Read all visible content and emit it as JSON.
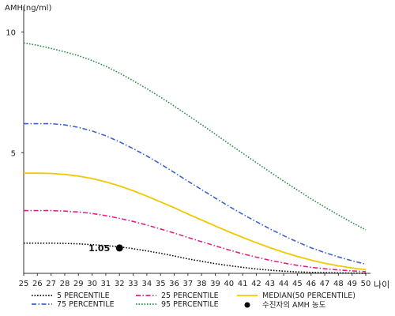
{
  "chart_data": {
    "type": "line",
    "title": "",
    "ylabel": "AMH(ng/ml)",
    "xlabel": "나이",
    "x": [
      25,
      26,
      27,
      28,
      29,
      30,
      31,
      32,
      33,
      34,
      35,
      36,
      37,
      38,
      39,
      40,
      41,
      42,
      43,
      44,
      45,
      46,
      47,
      48,
      49,
      50
    ],
    "xlim": [
      25,
      50
    ],
    "ylim": [
      0,
      11
    ],
    "yticks": [
      5,
      10
    ],
    "grid": false,
    "legend_position": "bottom",
    "series": [
      {
        "name": "5 PERCENTILE",
        "color": "#111111",
        "style": "dotted",
        "values": [
          1.25,
          1.25,
          1.25,
          1.24,
          1.22,
          1.19,
          1.15,
          1.1,
          1.02,
          0.93,
          0.83,
          0.72,
          0.6,
          0.5,
          0.4,
          0.32,
          0.25,
          0.18,
          0.13,
          0.09,
          0.06,
          0.04,
          0.03,
          0.02,
          0.01,
          0.0
        ]
      },
      {
        "name": "25 PERCENTILE",
        "color": "#e0218a",
        "style": "dashdot",
        "values": [
          2.6,
          2.6,
          2.6,
          2.58,
          2.54,
          2.48,
          2.39,
          2.28,
          2.15,
          2.0,
          1.84,
          1.67,
          1.49,
          1.31,
          1.14,
          0.97,
          0.81,
          0.67,
          0.54,
          0.43,
          0.33,
          0.25,
          0.19,
          0.14,
          0.1,
          0.07
        ]
      },
      {
        "name": "MEDIAN(50 PERCENTILE)",
        "color": "#f2c800",
        "style": "solid",
        "values": [
          4.15,
          4.15,
          4.14,
          4.1,
          4.03,
          3.93,
          3.79,
          3.62,
          3.42,
          3.2,
          2.96,
          2.72,
          2.46,
          2.21,
          1.96,
          1.72,
          1.49,
          1.27,
          1.06,
          0.87,
          0.7,
          0.55,
          0.42,
          0.31,
          0.22,
          0.15
        ]
      },
      {
        "name": "75 PERCENTILE",
        "color": "#3c63c9",
        "style": "dashdot",
        "values": [
          6.2,
          6.2,
          6.2,
          6.15,
          6.05,
          5.9,
          5.7,
          5.45,
          5.17,
          4.86,
          4.53,
          4.18,
          3.82,
          3.47,
          3.12,
          2.78,
          2.45,
          2.14,
          1.84,
          1.56,
          1.3,
          1.06,
          0.86,
          0.68,
          0.52,
          0.38
        ]
      },
      {
        "name": "95 PERCENTILE",
        "color": "#2e8b4e",
        "style": "dotted",
        "values": [
          9.55,
          9.45,
          9.32,
          9.18,
          9.02,
          8.82,
          8.58,
          8.3,
          7.98,
          7.65,
          7.3,
          6.93,
          6.55,
          6.16,
          5.77,
          5.37,
          4.98,
          4.59,
          4.2,
          3.82,
          3.45,
          3.09,
          2.75,
          2.42,
          2.1,
          1.8
        ]
      }
    ],
    "points": [
      {
        "name": "수진자의 AMH 농도",
        "x": 32,
        "y": 1.05,
        "label": "1.05",
        "color": "#000000"
      }
    ]
  }
}
